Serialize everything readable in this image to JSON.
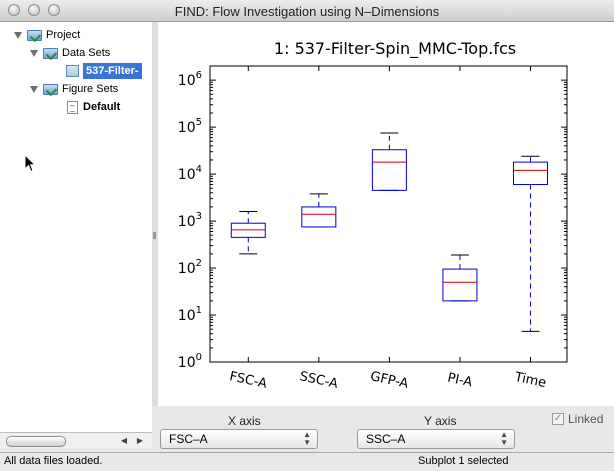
{
  "window": {
    "title": "FIND: Flow Investigation using N–Dimensions"
  },
  "tree": {
    "project": "Project",
    "data_sets": "Data Sets",
    "data_item": "537-Filter-",
    "figure_sets": "Figure Sets",
    "figure_item": "Default"
  },
  "chart_data": {
    "type": "boxplot",
    "title": "1: 537-Filter-Spin_MMC-Top.fcs",
    "y_scale": "log",
    "ylim": [
      1,
      2000000
    ],
    "y_ticks": [
      {
        "base": "10",
        "exp": "0",
        "value": 1
      },
      {
        "base": "10",
        "exp": "1",
        "value": 10
      },
      {
        "base": "10",
        "exp": "2",
        "value": 100
      },
      {
        "base": "10",
        "exp": "3",
        "value": 1000
      },
      {
        "base": "10",
        "exp": "4",
        "value": 10000
      },
      {
        "base": "10",
        "exp": "5",
        "value": 100000
      },
      {
        "base": "10",
        "exp": "6",
        "value": 1000000
      }
    ],
    "categories": [
      "FSC-A",
      "SSC-A",
      "GFP-A",
      "PI-A",
      "Time"
    ],
    "boxes": [
      {
        "label": "FSC-A",
        "whisker_low": 200,
        "q1": 450,
        "median": 650,
        "q3": 900,
        "whisker_high": 1600
      },
      {
        "label": "SSC-A",
        "whisker_low": 750,
        "q1": 750,
        "median": 1400,
        "q3": 2000,
        "whisker_high": 3800
      },
      {
        "label": "GFP-A",
        "whisker_low": 4500,
        "q1": 4500,
        "median": 18000,
        "q3": 33000,
        "whisker_high": 75000
      },
      {
        "label": "PI-A",
        "whisker_low": 20,
        "q1": 20,
        "median": 50,
        "q3": 95,
        "whisker_high": 190
      },
      {
        "label": "Time",
        "whisker_low": 4.5,
        "q1": 6000,
        "median": 12000,
        "q3": 18000,
        "whisker_high": 24000
      }
    ],
    "colors": {
      "box": "#0000cc",
      "median": "#cc0000",
      "whisker": "#0000cc"
    },
    "grid": false
  },
  "controls": {
    "x_axis_label": "X axis",
    "x_axis_value": "FSC–A",
    "y_axis_label": "Y axis",
    "y_axis_value": "SSC–A",
    "linked_label": "Linked",
    "linked_checked": true
  },
  "status": {
    "left": "All data files loaded.",
    "right": "Subplot 1 selected"
  }
}
